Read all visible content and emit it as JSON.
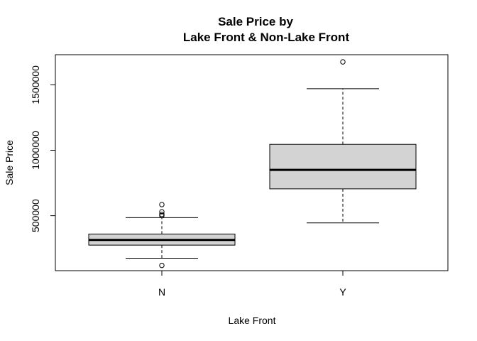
{
  "chart_data": {
    "type": "boxplot",
    "title": [
      "Sale Price by",
      "Lake Front & Non-Lake Front"
    ],
    "xlabel": "Lake Front",
    "ylabel": "Sale Price",
    "categories": [
      "N",
      "Y"
    ],
    "yticks": [
      500000,
      1000000,
      1500000
    ],
    "ytick_labels": [
      "500000",
      "1000000",
      "1500000"
    ],
    "ylim": [
      80000,
      1730000
    ],
    "grid": false,
    "legend": "none",
    "box_fill": "#d3d3d3",
    "boxes": [
      {
        "category": "N",
        "whisker_low": 175000,
        "q1": 275000,
        "median": 315000,
        "q3": 360000,
        "whisker_high": 485000,
        "outliers": [
          120000,
          500000,
          510000,
          530000,
          585000
        ]
      },
      {
        "category": "Y",
        "whisker_low": 445000,
        "q1": 705000,
        "median": 850000,
        "q3": 1045000,
        "whisker_high": 1470000,
        "outliers": [
          1675000
        ]
      }
    ]
  }
}
